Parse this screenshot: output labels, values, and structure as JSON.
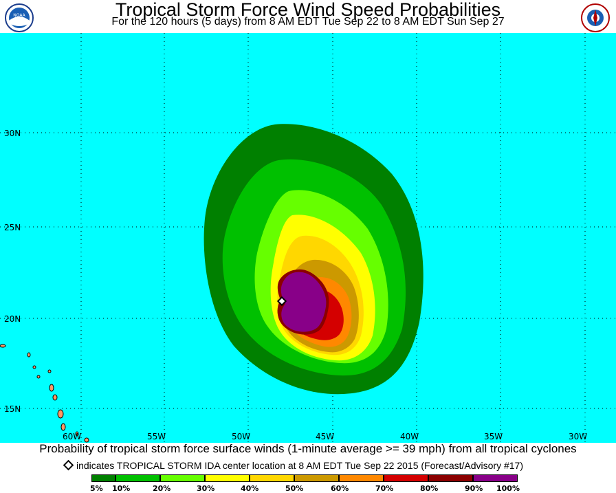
{
  "header": {
    "title": "Tropical Storm Force Wind Speed Probabilities",
    "subtitle": "For the 120 hours (5 days) from 8 AM EDT Tue Sep 22 to 8 AM EDT Sun Sep 27",
    "left_logo": "NOAA",
    "right_logo": "National Weather Service"
  },
  "map": {
    "ocean_color": "#00ffff",
    "lat_labels": [
      "30N",
      "25N",
      "20N",
      "15N"
    ],
    "lon_labels": [
      "60W",
      "55W",
      "50W",
      "45W",
      "40W",
      "35W",
      "30W"
    ],
    "storm_name": "IDA",
    "storm_center": {
      "lat": 21.1,
      "lon": -47.7
    }
  },
  "footer": {
    "line1": "Probability of tropical storm force surface winds (1-minute average >= 39 mph) from all tropical cyclones",
    "line2": "indicates TROPICAL STORM IDA center location at 8 AM EDT Tue Sep 22 2015 (Forecast/Advisory #17)"
  },
  "legend": {
    "labels": [
      "5%",
      "10%",
      "20%",
      "30%",
      "40%",
      "50%",
      "60%",
      "70%",
      "80%",
      "90%",
      "100%"
    ],
    "colors": [
      "#008000",
      "#00c000",
      "#66ff00",
      "#ffff00",
      "#ffd700",
      "#cc9900",
      "#ff8800",
      "#d40000",
      "#8b0000",
      "#880088"
    ]
  }
}
